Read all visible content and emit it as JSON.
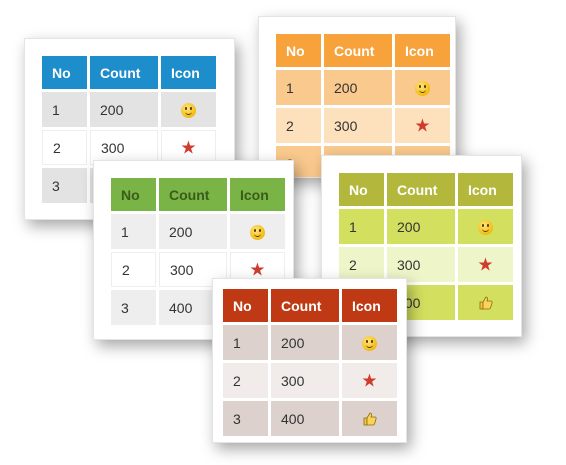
{
  "headers": {
    "no": "No",
    "count": "Count",
    "icon": "Icon"
  },
  "rows": [
    {
      "no": "1",
      "count": "200",
      "icon": "smiley-icon"
    },
    {
      "no": "2",
      "count": "300",
      "icon": "star-icon"
    },
    {
      "no": "3",
      "count": "400",
      "icon": "thumbs-up-icon"
    }
  ],
  "themes": {
    "blue": "#1d8dcc",
    "orange": "#f7a23a",
    "green": "#7ab346",
    "lime": "#b3b83d",
    "red": "#bf3a14"
  }
}
